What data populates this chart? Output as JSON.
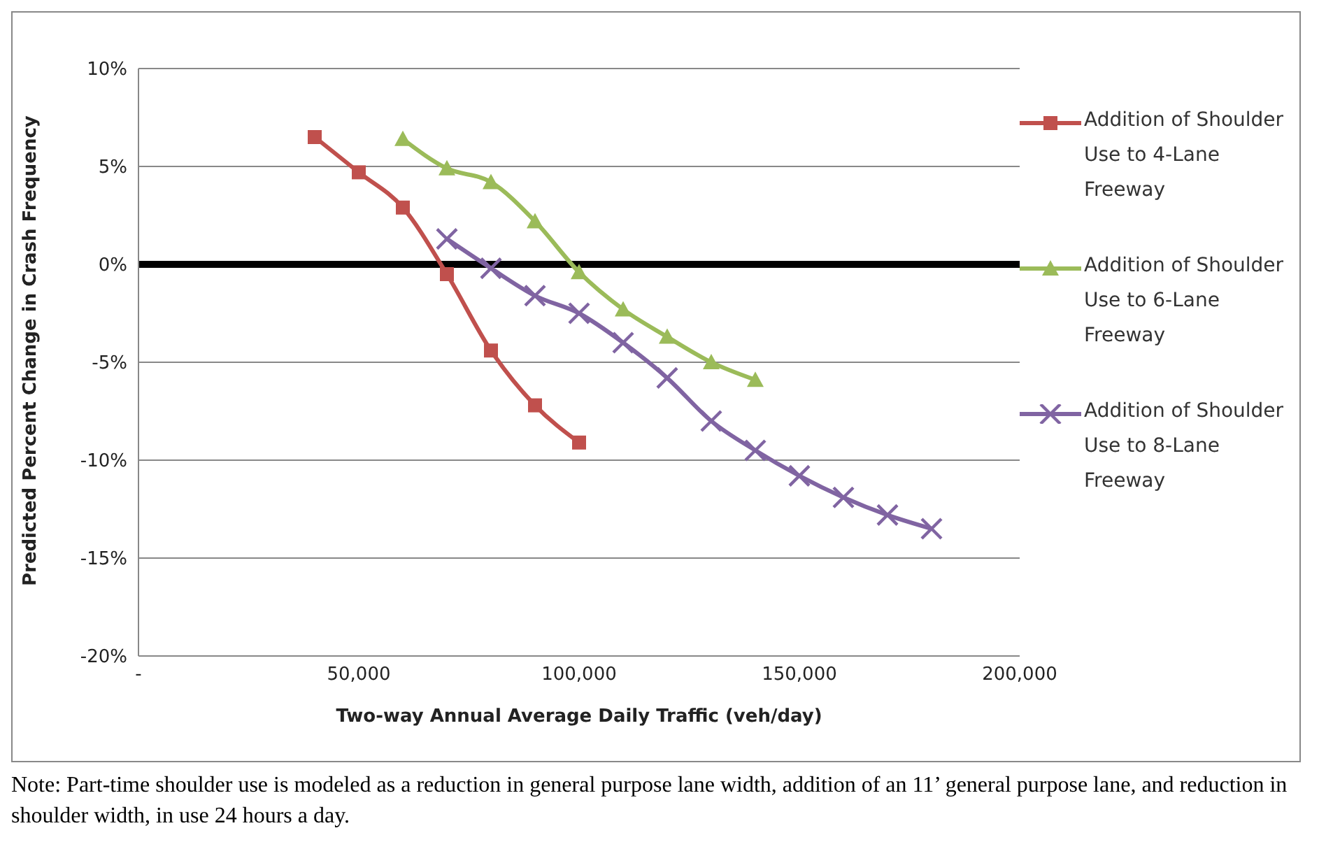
{
  "chart_data": {
    "type": "line",
    "xlabel": "Two-way Annual Average Daily Traffic (veh/day)",
    "ylabel": "Predicted Percent Change in Crash Frequency",
    "series": [
      {
        "name": "Addition of Shoulder Use to 4-Lane Freeway",
        "color": "#c0504d",
        "marker": "square",
        "x": [
          40000,
          50000,
          60000,
          70000,
          80000,
          90000,
          100000
        ],
        "values": [
          6.5,
          4.7,
          2.9,
          -0.5,
          -4.4,
          -7.2,
          -9.1
        ]
      },
      {
        "name": "Addition of Shoulder Use to 6-Lane Freeway",
        "color": "#9bbb59",
        "marker": "triangle",
        "x": [
          60000,
          70000,
          80000,
          90000,
          100000,
          110000,
          120000,
          130000,
          140000
        ],
        "values": [
          6.4,
          4.9,
          4.2,
          2.2,
          -0.4,
          -2.3,
          -3.7,
          -5.0,
          -5.9
        ]
      },
      {
        "name": "Addition of Shoulder Use to 8-Lane Freeway",
        "color": "#8064a2",
        "marker": "cross",
        "x": [
          70000,
          80000,
          90000,
          100000,
          110000,
          120000,
          130000,
          140000,
          150000,
          160000,
          170000,
          180000
        ],
        "values": [
          1.3,
          -0.2,
          -1.6,
          -2.5,
          -4.0,
          -5.8,
          -8.0,
          -9.5,
          -10.8,
          -11.9,
          -12.8,
          -13.5
        ]
      }
    ],
    "xlim": [
      0,
      200000
    ],
    "xticks": [
      {
        "value": 0,
        "label": "-"
      },
      {
        "value": 50000,
        "label": "50,000"
      },
      {
        "value": 100000,
        "label": "100,000"
      },
      {
        "value": 150000,
        "label": "150,000"
      },
      {
        "value": 200000,
        "label": "200,000"
      }
    ],
    "ylim": [
      -20,
      10
    ],
    "yticks": [
      {
        "value": -20,
        "label": "-20%"
      },
      {
        "value": -15,
        "label": "-15%"
      },
      {
        "value": -10,
        "label": "-10%"
      },
      {
        "value": -5,
        "label": "-5%"
      },
      {
        "value": 0,
        "label": "0%"
      },
      {
        "value": 5,
        "label": "5%"
      },
      {
        "value": 10,
        "label": "10%"
      }
    ],
    "ref_lines": [
      {
        "axis": "y",
        "value": 0,
        "color": "#000000"
      }
    ],
    "grid": "y",
    "legend": "right",
    "annotations": [
      "Note: Part-time shoulder use is modeled as a reduction in general purpose lane width, addition of an 11’ general purpose lane, and reduction in shoulder width, in use 24 hours a day."
    ]
  }
}
